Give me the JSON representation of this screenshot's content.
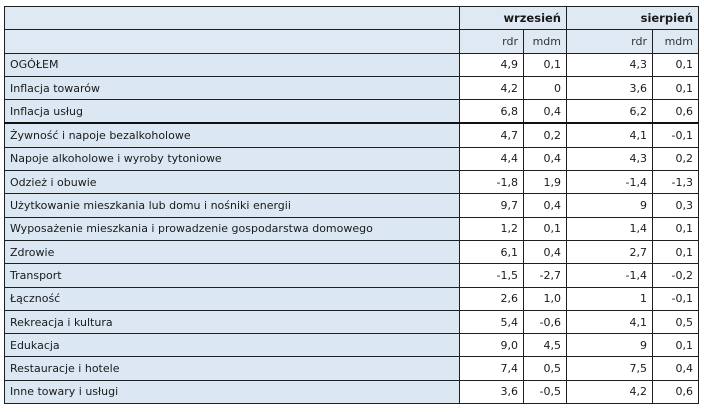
{
  "header": {
    "month1": "wrzesień",
    "month2": "sierpień",
    "sub": [
      "rdr",
      "mdm",
      "rdr",
      "mdm"
    ]
  },
  "rows": [
    {
      "label": "OGÓŁEM",
      "v": [
        "4,9",
        "0,1",
        "4,3",
        "0,1"
      ]
    },
    {
      "label": "Inflacja towarów",
      "v": [
        "4,2",
        "0",
        "3,6",
        "0,1"
      ]
    },
    {
      "label": "Inflacja usług",
      "v": [
        "6,8",
        "0,4",
        "6,2",
        "0,6"
      ]
    },
    {
      "label": "Żywność i napoje bezalkoholowe",
      "v": [
        "4,7",
        "0,2",
        "4,1",
        "-0,1"
      ]
    },
    {
      "label": "Napoje alkoholowe i wyroby tytoniowe",
      "v": [
        "4,4",
        "0,4",
        "4,3",
        "0,2"
      ]
    },
    {
      "label": "Odzież i obuwie",
      "v": [
        "-1,8",
        "1,9",
        "-1,4",
        "-1,3"
      ]
    },
    {
      "label": "Użytkowanie mieszkania lub domu i nośniki energii",
      "v": [
        "9,7",
        "0,4",
        "9",
        "0,3"
      ]
    },
    {
      "label": "Wyposażenie mieszkania i prowadzenie gospodarstwa domowego",
      "v": [
        "1,2",
        "0,1",
        "1,4",
        "0,1"
      ]
    },
    {
      "label": "Zdrowie",
      "v": [
        "6,1",
        "0,4",
        "2,7",
        "0,1"
      ]
    },
    {
      "label": "Transport",
      "v": [
        "-1,5",
        "-2,7",
        "-1,4",
        "-0,2"
      ]
    },
    {
      "label": "Łączność",
      "v": [
        "2,6",
        "1,0",
        "1",
        "-0,1"
      ]
    },
    {
      "label": "Rekreacja i kultura",
      "v": [
        "5,4",
        "-0,6",
        "4,1",
        "0,5"
      ]
    },
    {
      "label": "Edukacja",
      "v": [
        "9,0",
        "4,5",
        "9",
        "0,1"
      ]
    },
    {
      "label": "Restauracje i hotele",
      "v": [
        "7,4",
        "0,5",
        "7,5",
        "0,4"
      ]
    },
    {
      "label": "Inne towary i usługi",
      "v": [
        "3,6",
        "-0,5",
        "4,2",
        "0,6"
      ]
    }
  ]
}
